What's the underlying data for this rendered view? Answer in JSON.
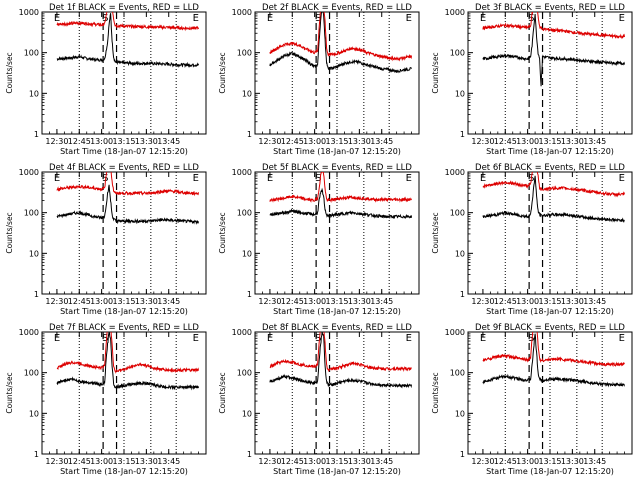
{
  "figure": {
    "start_time_label": "Start Time (18-Jan-07 12:15:20)",
    "ylabel": "Counts/sec"
  },
  "chart_data": [
    {
      "type": "line",
      "title": "Det 1f BLACK = Events, RED = LLD",
      "xlabel": "Start Time (18-Jan-07 12:15:20)",
      "ylabel": "Counts/sec",
      "yscale": "log",
      "ylim": [
        1,
        1000
      ],
      "xticks": [
        "12:30",
        "12:45",
        "13:00",
        "13:15",
        "13:30",
        "13:45"
      ],
      "yticks": [
        "1",
        "10",
        "100",
        "1000"
      ],
      "x_minutes": [
        15,
        25,
        30,
        35,
        40,
        45,
        47,
        48,
        49,
        50,
        51,
        52,
        53,
        54,
        55,
        60,
        65,
        70,
        75,
        80,
        85,
        90,
        95,
        100,
        105,
        110
      ],
      "series": [
        {
          "name": "Events",
          "color": "#000000",
          "values": [
            70,
            75,
            80,
            72,
            68,
            66,
            70,
            110,
            180,
            500,
            900,
            200,
            80,
            60,
            58,
            56,
            55,
            54,
            55,
            54,
            53,
            52,
            51,
            50,
            50,
            50
          ]
        },
        {
          "name": "LLD",
          "color": "#dd0000",
          "values": [
            500,
            520,
            540,
            520,
            500,
            480,
            500,
            800,
            1200,
            1400,
            1400,
            1400,
            700,
            480,
            460,
            450,
            440,
            440,
            430,
            430,
            420,
            420,
            410,
            400,
            400,
            400
          ]
        }
      ],
      "markers": {
        "E": [
          15,
          108
        ],
        "S": 48,
        "dotted": [
          30,
          60,
          78,
          95
        ],
        "dashed": [
          46,
          55
        ]
      }
    },
    {
      "type": "line",
      "title": "Det 2f BLACK = Events, RED = LLD",
      "xlabel": "Start Time (18-Jan-07 12:15:20)",
      "ylabel": "Counts/sec",
      "yscale": "log",
      "ylim": [
        1,
        1000
      ],
      "xticks": [
        "12:30",
        "12:45",
        "13:00",
        "13:15",
        "13:30",
        "13:45"
      ],
      "yticks": [
        "1",
        "10",
        "100",
        "1000"
      ],
      "x_minutes": [
        15,
        20,
        25,
        30,
        35,
        40,
        45,
        47,
        48,
        49,
        50,
        51,
        52,
        53,
        54,
        55,
        60,
        65,
        70,
        75,
        80,
        85,
        90,
        95,
        100,
        105,
        110
      ],
      "series": [
        {
          "name": "Events",
          "color": "#000000",
          "values": [
            50,
            65,
            85,
            95,
            80,
            60,
            45,
            50,
            200,
            600,
            1200,
            900,
            200,
            60,
            40,
            40,
            45,
            55,
            60,
            58,
            50,
            45,
            40,
            38,
            35,
            38,
            40
          ]
        },
        {
          "name": "LLD",
          "color": "#dd0000",
          "values": [
            100,
            130,
            160,
            170,
            150,
            120,
            100,
            110,
            400,
            1200,
            1400,
            1400,
            600,
            130,
            90,
            90,
            95,
            110,
            130,
            120,
            100,
            90,
            80,
            75,
            70,
            75,
            80
          ]
        }
      ],
      "markers": {
        "E": [
          15,
          108
        ],
        "S": 48,
        "dotted": [
          30,
          60,
          78,
          95
        ],
        "dashed": [
          46,
          55
        ]
      }
    },
    {
      "type": "line",
      "title": "Det 3f BLACK = Events, RED = LLD",
      "xlabel": "Start Time (18-Jan-07 12:15:20)",
      "ylabel": "Counts/sec",
      "yscale": "log",
      "ylim": [
        1,
        1000
      ],
      "xticks": [
        "12:30",
        "12:45",
        "13:00",
        "13:15",
        "13:30",
        "13:45"
      ],
      "yticks": [
        "1",
        "10",
        "100",
        "1000"
      ],
      "x_minutes": [
        15,
        25,
        30,
        35,
        40,
        45,
        47,
        48,
        49,
        50,
        51,
        52,
        53,
        54,
        55,
        60,
        65,
        70,
        75,
        80,
        85,
        90,
        95,
        100,
        105,
        110
      ],
      "series": [
        {
          "name": "Events",
          "color": "#000000",
          "values": [
            70,
            80,
            85,
            80,
            75,
            70,
            80,
            150,
            400,
            900,
            250,
            100,
            75,
            15,
            80,
            75,
            72,
            70,
            68,
            65,
            62,
            60,
            58,
            56,
            55,
            55
          ]
        },
        {
          "name": "LLD",
          "color": "#dd0000",
          "values": [
            400,
            450,
            470,
            450,
            430,
            420,
            450,
            900,
            1400,
            1400,
            1400,
            800,
            450,
            400,
            380,
            370,
            350,
            340,
            320,
            300,
            290,
            280,
            270,
            260,
            250,
            250
          ]
        }
      ],
      "markers": {
        "E": [
          15,
          108
        ],
        "S": 48,
        "dotted": [
          30,
          60,
          78,
          95
        ],
        "dashed": [
          46,
          55
        ]
      }
    },
    {
      "type": "line",
      "title": "Det 4f BLACK = Events, RED = LLD",
      "xlabel": "Start Time (18-Jan-07 12:15:20)",
      "ylabel": "Counts/sec",
      "yscale": "log",
      "ylim": [
        1,
        1000
      ],
      "xticks": [
        "12:30",
        "12:45",
        "13:00",
        "13:15",
        "13:30",
        "13:45"
      ],
      "yticks": [
        "1",
        "10",
        "100",
        "1000"
      ],
      "x_minutes": [
        15,
        25,
        30,
        35,
        40,
        45,
        47,
        48,
        49,
        50,
        51,
        52,
        53,
        54,
        55,
        60,
        65,
        70,
        75,
        80,
        85,
        90,
        95,
        100,
        105,
        110
      ],
      "series": [
        {
          "name": "Events",
          "color": "#000000",
          "values": [
            80,
            95,
            100,
            90,
            80,
            75,
            80,
            150,
            300,
            450,
            200,
            90,
            70,
            65,
            62,
            62,
            62,
            62,
            62,
            64,
            66,
            66,
            64,
            62,
            60,
            60
          ]
        },
        {
          "name": "LLD",
          "color": "#dd0000",
          "values": [
            380,
            420,
            440,
            420,
            400,
            380,
            400,
            800,
            1400,
            1400,
            1400,
            600,
            350,
            300,
            300,
            300,
            300,
            300,
            300,
            310,
            330,
            340,
            330,
            310,
            300,
            300
          ]
        }
      ],
      "markers": {
        "E": [
          15,
          108
        ],
        "S": 48,
        "dotted": [
          30,
          60,
          78,
          95
        ],
        "dashed": [
          46,
          55
        ]
      }
    },
    {
      "type": "line",
      "title": "Det 5f BLACK = Events, RED = LLD",
      "xlabel": "Start Time (18-Jan-07 12:15:20)",
      "ylabel": "Counts/sec",
      "yscale": "log",
      "ylim": [
        1,
        1000
      ],
      "xticks": [
        "12:30",
        "12:45",
        "13:00",
        "13:15",
        "13:30",
        "13:45"
      ],
      "yticks": [
        "1",
        "10",
        "100",
        "1000"
      ],
      "x_minutes": [
        15,
        25,
        30,
        35,
        40,
        45,
        47,
        48,
        49,
        50,
        51,
        52,
        53,
        54,
        55,
        60,
        65,
        70,
        75,
        80,
        85,
        90,
        95,
        100,
        105,
        110
      ],
      "series": [
        {
          "name": "Events",
          "color": "#000000",
          "values": [
            90,
            100,
            110,
            100,
            95,
            90,
            100,
            200,
            300,
            350,
            250,
            120,
            90,
            85,
            85,
            90,
            95,
            100,
            95,
            90,
            85,
            80,
            80,
            80,
            80,
            80
          ]
        },
        {
          "name": "LLD",
          "color": "#dd0000",
          "values": [
            200,
            230,
            250,
            230,
            210,
            200,
            220,
            400,
            800,
            1100,
            900,
            400,
            210,
            200,
            200,
            220,
            230,
            240,
            230,
            220,
            210,
            210,
            210,
            210,
            210,
            210
          ]
        }
      ],
      "markers": {
        "E": [
          15,
          108
        ],
        "S": 48,
        "dotted": [
          30,
          60,
          78,
          95
        ],
        "dashed": [
          46,
          55
        ]
      }
    },
    {
      "type": "line",
      "title": "Det 6f BLACK = Events, RED = LLD",
      "xlabel": "Start Time (18-Jan-07 12:15:20)",
      "ylabel": "Counts/sec",
      "yscale": "log",
      "ylim": [
        1,
        1000
      ],
      "xticks": [
        "12:30",
        "12:45",
        "13:00",
        "13:15",
        "13:30",
        "13:45"
      ],
      "yticks": [
        "1",
        "10",
        "100",
        "1000"
      ],
      "x_minutes": [
        15,
        25,
        30,
        35,
        40,
        45,
        47,
        48,
        49,
        50,
        51,
        52,
        53,
        54,
        55,
        60,
        65,
        70,
        75,
        80,
        85,
        90,
        95,
        100,
        105,
        110
      ],
      "series": [
        {
          "name": "Events",
          "color": "#000000",
          "values": [
            80,
            90,
            100,
            92,
            85,
            80,
            90,
            180,
            400,
            800,
            250,
            110,
            90,
            85,
            85,
            88,
            90,
            90,
            85,
            80,
            75,
            72,
            70,
            68,
            65,
            65
          ]
        },
        {
          "name": "LLD",
          "color": "#dd0000",
          "values": [
            450,
            520,
            560,
            520,
            480,
            460,
            500,
            900,
            1400,
            1400,
            1400,
            800,
            400,
            380,
            380,
            390,
            400,
            400,
            380,
            360,
            340,
            320,
            300,
            290,
            280,
            280
          ]
        }
      ],
      "markers": {
        "E": [
          15,
          108
        ],
        "S": 48,
        "dotted": [
          30,
          60,
          78,
          95
        ],
        "dashed": [
          46,
          55
        ]
      }
    },
    {
      "type": "line",
      "title": "Det 7f BLACK = Events, RED = LLD",
      "xlabel": "Start Time (18-Jan-07 12:15:20)",
      "ylabel": "Counts/sec",
      "yscale": "log",
      "ylim": [
        1,
        1000
      ],
      "xticks": [
        "12:30",
        "12:45",
        "13:00",
        "13:15",
        "13:30",
        "13:45"
      ],
      "yticks": [
        "1",
        "10",
        "100",
        "1000"
      ],
      "x_minutes": [
        15,
        20,
        25,
        30,
        35,
        40,
        45,
        47,
        48,
        49,
        50,
        51,
        52,
        53,
        54,
        55,
        60,
        65,
        70,
        75,
        80,
        85,
        90,
        95,
        100,
        105,
        110
      ],
      "series": [
        {
          "name": "Events",
          "color": "#000000",
          "values": [
            55,
            65,
            70,
            62,
            58,
            55,
            50,
            55,
            200,
            500,
            1000,
            700,
            150,
            55,
            45,
            45,
            48,
            52,
            55,
            55,
            50,
            46,
            44,
            44,
            44,
            44,
            44
          ]
        },
        {
          "name": "LLD",
          "color": "#dd0000",
          "values": [
            130,
            160,
            180,
            170,
            150,
            140,
            130,
            150,
            500,
            1300,
            1400,
            1400,
            500,
            150,
            110,
            110,
            120,
            140,
            160,
            150,
            130,
            120,
            115,
            115,
            115,
            115,
            115
          ]
        }
      ],
      "markers": {
        "E": [
          15,
          108
        ],
        "S": 48,
        "dotted": [
          30,
          60,
          78,
          95
        ],
        "dashed": [
          46,
          55
        ]
      }
    },
    {
      "type": "line",
      "title": "Det 8f BLACK = Events, RED = LLD",
      "xlabel": "Start Time (18-Jan-07 12:15:20)",
      "ylabel": "Counts/sec",
      "yscale": "log",
      "ylim": [
        1,
        1000
      ],
      "xticks": [
        "12:30",
        "12:45",
        "13:00",
        "13:15",
        "13:30",
        "13:45"
      ],
      "yticks": [
        "1",
        "10",
        "100",
        "1000"
      ],
      "x_minutes": [
        15,
        20,
        25,
        30,
        35,
        40,
        45,
        47,
        48,
        49,
        50,
        51,
        52,
        53,
        54,
        55,
        60,
        65,
        70,
        75,
        80,
        85,
        90,
        95,
        100,
        105,
        110
      ],
      "series": [
        {
          "name": "Events",
          "color": "#000000",
          "values": [
            60,
            70,
            80,
            75,
            65,
            60,
            55,
            60,
            200,
            500,
            1000,
            800,
            150,
            60,
            50,
            50,
            55,
            62,
            65,
            62,
            56,
            52,
            50,
            50,
            48,
            48,
            48
          ]
        },
        {
          "name": "LLD",
          "color": "#dd0000",
          "values": [
            140,
            170,
            190,
            180,
            160,
            150,
            140,
            160,
            500,
            1300,
            1400,
            1400,
            500,
            150,
            120,
            120,
            130,
            150,
            170,
            160,
            140,
            130,
            125,
            125,
            125,
            125,
            125
          ]
        }
      ],
      "markers": {
        "E": [
          15,
          108
        ],
        "S": 48,
        "dotted": [
          30,
          60,
          78,
          95
        ],
        "dashed": [
          46,
          55
        ]
      }
    },
    {
      "type": "line",
      "title": "Det 9f BLACK = Events, RED = LLD",
      "xlabel": "Start Time (18-Jan-07 12:15:20)",
      "ylabel": "Counts/sec",
      "yscale": "log",
      "ylim": [
        1,
        1000
      ],
      "xticks": [
        "12:30",
        "12:45",
        "13:00",
        "13:15",
        "13:30",
        "13:45"
      ],
      "yticks": [
        "1",
        "10",
        "100",
        "1000"
      ],
      "x_minutes": [
        15,
        25,
        30,
        35,
        40,
        45,
        47,
        48,
        49,
        50,
        51,
        52,
        53,
        54,
        55,
        60,
        65,
        70,
        75,
        80,
        85,
        90,
        95,
        100,
        105,
        110
      ],
      "series": [
        {
          "name": "Events",
          "color": "#000000",
          "values": [
            60,
            75,
            80,
            75,
            70,
            65,
            70,
            150,
            400,
            900,
            300,
            100,
            70,
            65,
            65,
            68,
            70,
            68,
            65,
            62,
            58,
            55,
            52,
            50,
            50,
            50
          ]
        },
        {
          "name": "LLD",
          "color": "#dd0000",
          "values": [
            200,
            250,
            260,
            240,
            220,
            210,
            240,
            700,
            1400,
            1400,
            1400,
            500,
            220,
            200,
            200,
            210,
            220,
            210,
            200,
            190,
            180,
            170,
            160,
            160,
            160,
            160
          ]
        }
      ],
      "markers": {
        "E": [
          15,
          108
        ],
        "S": 48,
        "dotted": [
          30,
          60,
          78,
          95
        ],
        "dashed": [
          46,
          55
        ]
      }
    }
  ]
}
